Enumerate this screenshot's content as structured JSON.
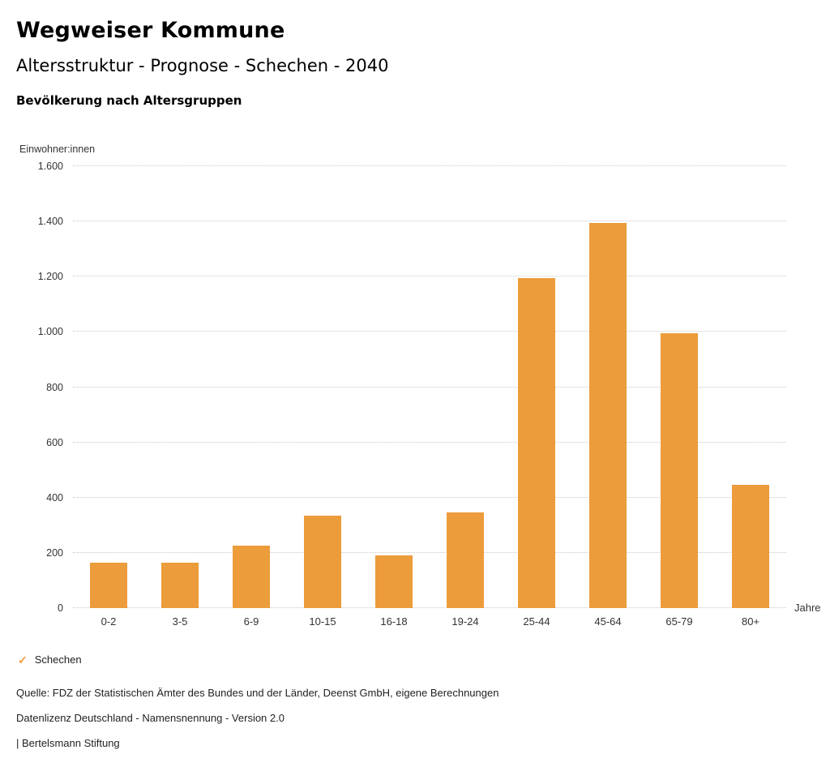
{
  "header": {
    "title": "Wegweiser Kommune",
    "subtitle": "Altersstruktur - Prognose - Schechen - 2040",
    "chart_title": "Bevölkerung nach Altersgruppen"
  },
  "chart_data": {
    "type": "bar",
    "title": "Bevölkerung nach Altersgruppen",
    "ylabel": "Einwohner:innen",
    "x_unit_label": "Jahre",
    "ylim": [
      0,
      1600
    ],
    "grid": true,
    "gridline_style": "dotted",
    "bar_color": "#EC9C3B",
    "categories": [
      "0-2",
      "3-5",
      "6-9",
      "10-15",
      "16-18",
      "19-24",
      "25-44",
      "45-64",
      "65-79",
      "80+"
    ],
    "values": [
      165,
      165,
      225,
      335,
      190,
      345,
      1195,
      1395,
      995,
      445
    ],
    "yticks": [
      {
        "value": 0,
        "label": "0"
      },
      {
        "value": 200,
        "label": "200"
      },
      {
        "value": 400,
        "label": "400"
      },
      {
        "value": 600,
        "label": "600"
      },
      {
        "value": 800,
        "label": "800"
      },
      {
        "value": 1000,
        "label": "1.000"
      },
      {
        "value": 1200,
        "label": "1.200"
      },
      {
        "value": 1400,
        "label": "1.400"
      },
      {
        "value": 1600,
        "label": "1.600"
      }
    ],
    "legend": [
      {
        "label": "Schechen",
        "color": "#EC9C3B",
        "marker": "check"
      }
    ],
    "legend_position": "bottom-left"
  },
  "footer": {
    "source": "Quelle: FDZ der Statistischen Ämter des Bundes und der Länder, Deenst GmbH, eigene Berechnungen",
    "license": "Datenlizenz Deutschland - Namensnennung - Version 2.0",
    "attribution": "| Bertelsmann Stiftung"
  }
}
